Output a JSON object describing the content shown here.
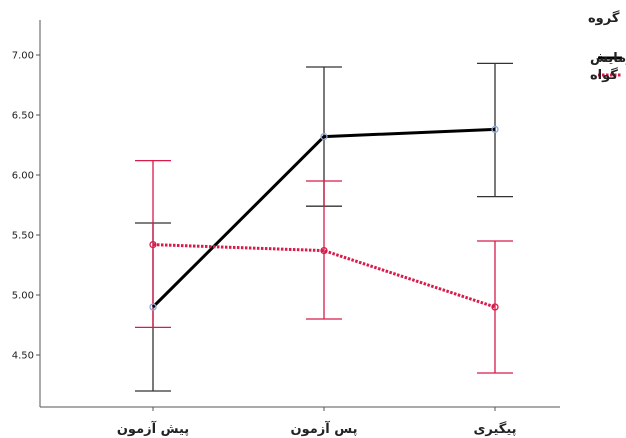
{
  "chart_data": {
    "type": "line",
    "title": "",
    "xlabel": "",
    "ylabel": "",
    "categories": [
      "پیش آزمون",
      "پس آزمون",
      "پیگیری"
    ],
    "y_ticks": [
      "4.50",
      "5.00",
      "5.50",
      "6.00",
      "6.50",
      "7.00"
    ],
    "ylim": [
      4.1,
      7.2
    ],
    "legend": {
      "title": "گروه",
      "placement": "top-right"
    },
    "series": [
      {
        "name": "آزمایش",
        "color": "#000000",
        "style": "solid",
        "marker_color": "#8fa8d8",
        "values": [
          4.9,
          6.32,
          6.38
        ],
        "error_low": [
          4.2,
          5.74,
          5.82
        ],
        "error_high": [
          5.6,
          6.9,
          6.93
        ],
        "error_color": "#333333"
      },
      {
        "name": "گواه",
        "color": "#d81b4a",
        "style": "dotted",
        "marker_color": "#d81b4a",
        "values": [
          5.42,
          5.37,
          4.9
        ],
        "error_low": [
          4.73,
          4.8,
          4.35
        ],
        "error_high": [
          6.12,
          5.95,
          5.45
        ],
        "error_color": "#d81b4a"
      }
    ]
  }
}
